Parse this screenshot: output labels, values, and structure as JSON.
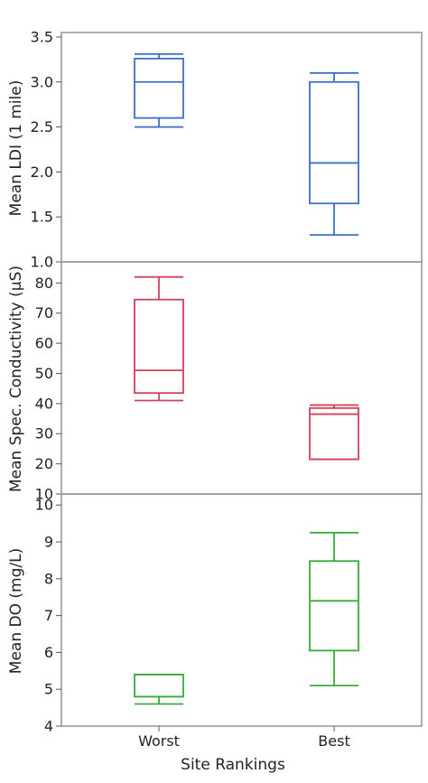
{
  "chart_data": {
    "type": "box",
    "xlabel": "Site Rankings",
    "categories": [
      "Worst",
      "Best"
    ],
    "panels": [
      {
        "ylabel": "Mean LDI (1 mile)",
        "ylim": [
          1.0,
          3.55
        ],
        "yticks": [
          "1.0",
          "1.5",
          "2.0",
          "2.5",
          "3.0",
          "3.5"
        ],
        "color": "#3c6fc5",
        "boxes": [
          {
            "category": "Worst",
            "min": 2.5,
            "q1": 2.6,
            "median": 3.0,
            "q3": 3.26,
            "max": 3.31
          },
          {
            "category": "Best",
            "min": 1.3,
            "q1": 1.65,
            "median": 2.1,
            "q3": 3.0,
            "max": 3.1
          }
        ]
      },
      {
        "ylabel": "Mean Spec. Conductivity (µS)",
        "ylim": [
          10,
          87
        ],
        "yticks": [
          "10",
          "20",
          "30",
          "40",
          "50",
          "60",
          "70",
          "80"
        ],
        "color": "#d1425a",
        "boxes": [
          {
            "category": "Worst",
            "min": 41,
            "q1": 43.5,
            "median": 51,
            "q3": 74.5,
            "max": 82
          },
          {
            "category": "Best",
            "min": 21.5,
            "q1": 21.5,
            "median": 36.5,
            "q3": 38.5,
            "max": 39.5
          }
        ]
      },
      {
        "ylabel": "Mean DO (mg/L)",
        "ylim": [
          4,
          10.3
        ],
        "yticks": [
          "4",
          "5",
          "6",
          "7",
          "8",
          "9",
          "10"
        ],
        "color": "#3aab3a",
        "boxes": [
          {
            "category": "Worst",
            "min": 4.6,
            "q1": 4.8,
            "median": 4.8,
            "q3": 5.4,
            "max": 5.4
          },
          {
            "category": "Best",
            "min": 5.1,
            "q1": 6.05,
            "median": 7.4,
            "q3": 8.48,
            "max": 9.25
          }
        ]
      }
    ]
  }
}
